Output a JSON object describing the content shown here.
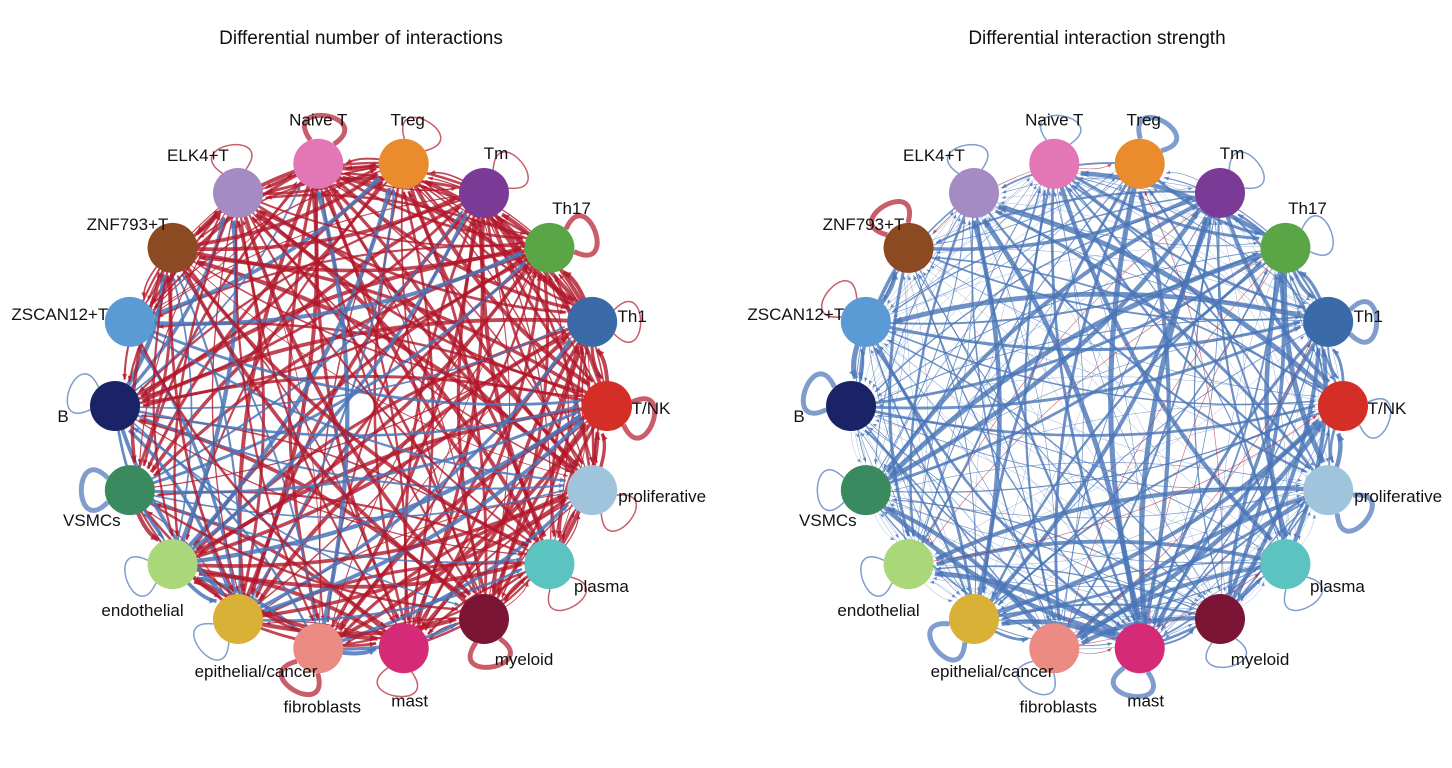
{
  "panels": [
    {
      "title": "Differential number of interactions",
      "dominant_edge_color": "#b2182b",
      "self_loops": {
        "Naive T": "red",
        "Treg": "red",
        "Tm": "red",
        "Th17": "red",
        "Th1": "red",
        "T/NK": "red",
        "proliferative": "red",
        "plasma": "red",
        "myeloid": "red",
        "mast": "red",
        "fibroblasts": "red",
        "epithelial/cancer": "blue",
        "endothelial": "blue",
        "VSMCs": "blue",
        "B": "blue",
        "ELK4+T": "red"
      }
    },
    {
      "title": "Differential interaction strength",
      "dominant_edge_color": "#4a75b8",
      "self_loops": {
        "Naive T": "blue",
        "Treg": "blue",
        "Tm": "blue",
        "Th17": "blue",
        "Th1": "blue",
        "T/NK": "blue",
        "proliferative": "blue",
        "plasma": "blue",
        "myeloid": "blue",
        "mast": "blue",
        "fibroblasts": "blue",
        "epithelial/cancer": "blue",
        "endothelial": "blue",
        "VSMCs": "blue",
        "B": "blue",
        "ZSCAN12+T": "red",
        "ZNF793+T": "red",
        "ELK4+T": "blue"
      }
    }
  ],
  "edge_colors": {
    "red": "#b2182b",
    "blue": "#4a75b8"
  },
  "nodes": [
    {
      "name": "Naive T",
      "color": "#e377b5"
    },
    {
      "name": "Treg",
      "color": "#ea8b2d"
    },
    {
      "name": "Tm",
      "color": "#7b3a96"
    },
    {
      "name": "Th17",
      "color": "#5aa646"
    },
    {
      "name": "Th1",
      "color": "#3b6aa8"
    },
    {
      "name": "T/NK",
      "color": "#d42e27"
    },
    {
      "name": "proliferative",
      "color": "#a1c4dd"
    },
    {
      "name": "plasma",
      "color": "#5cc4c0"
    },
    {
      "name": "myeloid",
      "color": "#7a1535"
    },
    {
      "name": "mast",
      "color": "#d52a78"
    },
    {
      "name": "fibroblasts",
      "color": "#ec8b84"
    },
    {
      "name": "epithelial/cancer",
      "color": "#d9b136"
    },
    {
      "name": "endothelial",
      "color": "#aad77a"
    },
    {
      "name": "VSMCs",
      "color": "#3a8a5f"
    },
    {
      "name": "B",
      "color": "#1a2366"
    },
    {
      "name": "ZSCAN12+T",
      "color": "#5b9bd5"
    },
    {
      "name": "ZNF793+T",
      "color": "#8b4a22"
    },
    {
      "name": "ELK4+T",
      "color": "#a58bc4"
    }
  ]
}
